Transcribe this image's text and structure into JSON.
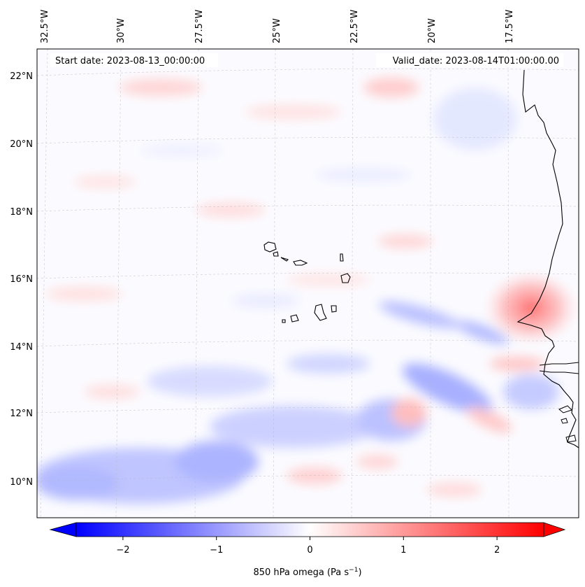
{
  "map": {
    "start_date": "Start date: 2023-08-13_00:00:00",
    "valid_date": "Valid_date: 2023-08-14T01:00:00.00",
    "lon_labels": [
      "32.5°W",
      "30°W",
      "27.5°W",
      "25°W",
      "22.5°W",
      "20°W",
      "17.5°W"
    ],
    "lat_labels": [
      "22°N",
      "20°N",
      "18°N",
      "16°N",
      "14°N",
      "12°N",
      "10°N"
    ],
    "colorbar": {
      "ticks": [
        "−2",
        "−1",
        "0",
        "1",
        "2"
      ],
      "tick_values": [
        -2,
        -1,
        0,
        1,
        2
      ],
      "range": [
        -2.5,
        2.5
      ],
      "label_prefix": "850 hPa omega (Pa s",
      "label_exp": "−1",
      "label_suffix": ")"
    },
    "colors": {
      "negative": "#0000ff",
      "zero": "#ffffff",
      "positive": "#ff0000"
    }
  }
}
